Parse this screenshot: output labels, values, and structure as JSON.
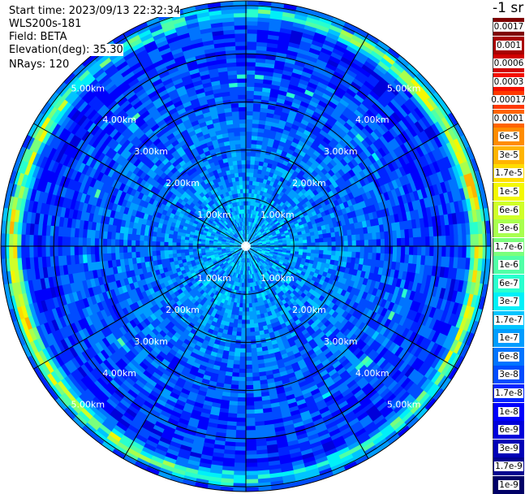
{
  "info": {
    "start_time": "Start time: 2023/09/13 22:32:34",
    "instrument": "WLS200s-181",
    "field": "Field: BETA",
    "elevation": "Elevation(deg): 35.30",
    "nrays": "NRays: 120"
  },
  "colorbar": {
    "title": "-1 sr",
    "labels": [
      "0.0017",
      "0.001",
      "0.0006",
      "0.0003",
      "0.00017",
      "0.0001",
      "6e-5",
      "3e-5",
      "1.7e-5",
      "1e-5",
      "6e-6",
      "3e-6",
      "1.7e-6",
      "1e-6",
      "6e-7",
      "3e-7",
      "1.7e-7",
      "1e-7",
      "6e-8",
      "3e-8",
      "1.7e-8",
      "1e-8",
      "6e-9",
      "3e-9",
      "1.7e-9",
      "1e-9"
    ],
    "colors": [
      "#7f0000",
      "#a80000",
      "#d00000",
      "#f51000",
      "#ff3800",
      "#ff6400",
      "#ff8c00",
      "#ffb400",
      "#ffdc00",
      "#f4f802",
      "#cfff28",
      "#a8ff4e",
      "#7aff7c",
      "#50ffa6",
      "#28ffce",
      "#00f0f8",
      "#00c4ff",
      "#009cff",
      "#0074ff",
      "#004cff",
      "#0024ff",
      "#0000fc",
      "#0000da",
      "#0000b6",
      "#00008f",
      "#000066"
    ]
  },
  "chart_data": {
    "type": "heatmap",
    "projection": "polar (PPI)",
    "field": "BETA",
    "units": "-1 sr",
    "nrays": 120,
    "range_ring_labels": [
      "1.00km",
      "2.00km",
      "3.00km",
      "4.00km",
      "5.00km"
    ],
    "range_rings_km": [
      1,
      2,
      3,
      4,
      5
    ],
    "max_range_km": 5.1,
    "spoke_angles_deg": [
      0,
      30,
      60,
      90,
      120,
      150,
      180,
      210,
      240,
      270,
      300,
      330
    ],
    "colorscale": "log10, 1e-9 to 0.0017",
    "pattern": {
      "background_level_near": "1e-7 to 3e-7",
      "background_level_far": "1e-8 to 6e-8",
      "enhanced_band_range_km": [
        4.6,
        5.1
      ],
      "enhanced_band_peak": "6e-5 to 0.0003"
    }
  }
}
